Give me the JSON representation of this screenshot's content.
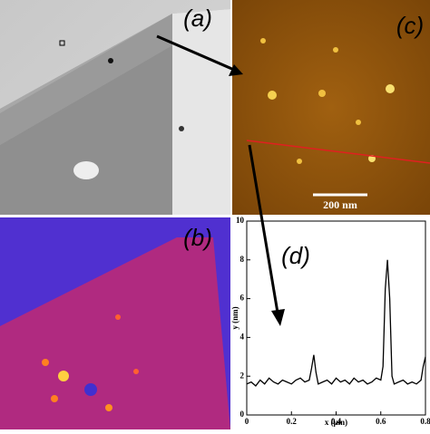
{
  "panels": [
    {
      "label": "(a)"
    },
    {
      "label": "(b)"
    },
    {
      "label": "(c)"
    },
    {
      "label": "(d)"
    }
  ],
  "scale_bar": "200 nm",
  "chart_data": {
    "type": "line",
    "xlabel": "x (μm)",
    "ylabel": "y (nm)",
    "color": "#000000",
    "x": [
      0,
      0.02,
      0.04,
      0.06,
      0.08,
      0.1,
      0.12,
      0.14,
      0.16,
      0.18,
      0.2,
      0.22,
      0.24,
      0.26,
      0.28,
      0.29,
      0.3,
      0.31,
      0.32,
      0.34,
      0.36,
      0.38,
      0.4,
      0.42,
      0.44,
      0.46,
      0.48,
      0.5,
      0.52,
      0.54,
      0.56,
      0.58,
      0.6,
      0.61,
      0.62,
      0.63,
      0.64,
      0.65,
      0.66,
      0.68,
      0.7,
      0.72,
      0.74,
      0.76,
      0.78,
      0.79,
      0.8
    ],
    "values": [
      1.6,
      1.7,
      1.5,
      1.8,
      1.6,
      1.9,
      1.7,
      1.6,
      1.8,
      1.7,
      1.6,
      1.8,
      1.9,
      1.7,
      1.8,
      2.4,
      3.1,
      2.2,
      1.6,
      1.7,
      1.8,
      1.6,
      1.9,
      1.7,
      1.8,
      1.6,
      1.9,
      1.7,
      1.8,
      1.6,
      1.7,
      1.9,
      1.8,
      2.5,
      6.5,
      8.0,
      6.0,
      2.0,
      1.6,
      1.7,
      1.8,
      1.6,
      1.7,
      1.6,
      1.8,
      2.5,
      3.0
    ],
    "xlim": [
      0,
      0.8
    ],
    "ylim": [
      0,
      10
    ],
    "xticks": [
      0,
      0.2,
      0.4,
      0.6,
      0.8
    ],
    "yticks": [
      0,
      2,
      4,
      6,
      8,
      10
    ]
  }
}
